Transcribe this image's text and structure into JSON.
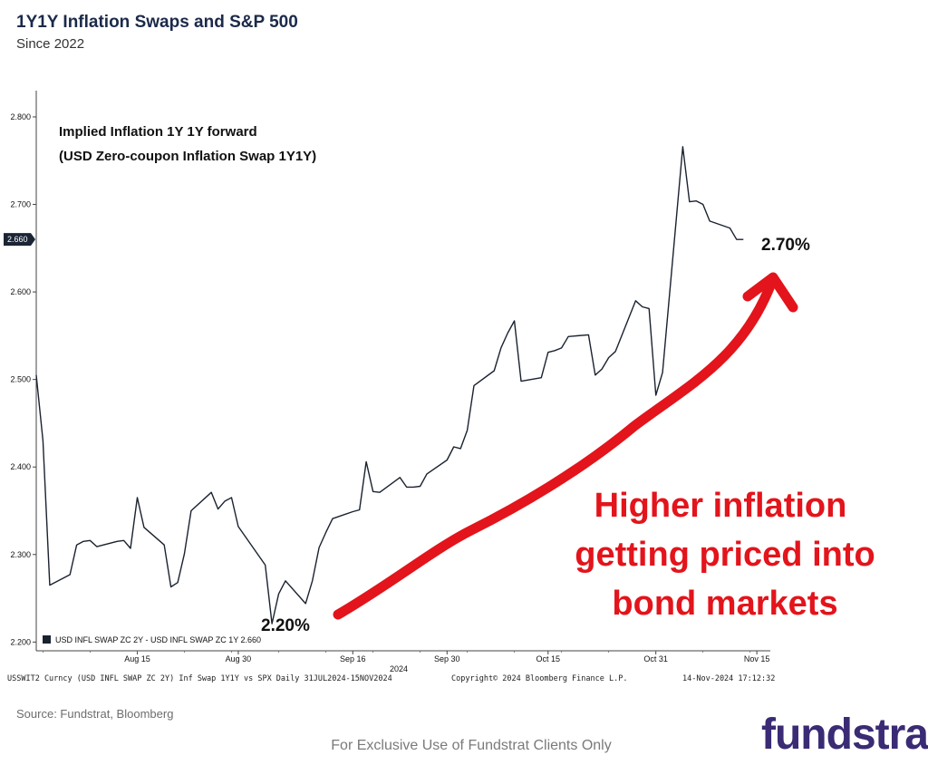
{
  "header": {
    "title": "1Y1Y Inflation Swaps and S&P 500",
    "subtitle": "Since 2022"
  },
  "chart_data": {
    "type": "line",
    "xlabel": "2024",
    "ylabel": "",
    "ylim": [
      2.19,
      2.83
    ],
    "yticks": [
      2.2,
      2.3,
      2.4,
      2.5,
      2.6,
      2.7,
      2.8
    ],
    "ytick_labels": [
      "2.200",
      "2.300",
      "2.400",
      "2.500",
      "2.600",
      "2.700",
      "2.800"
    ],
    "xticks": [
      {
        "label": "Aug 15",
        "date": "2024-08-15"
      },
      {
        "label": "Aug 30",
        "date": "2024-08-30"
      },
      {
        "label": "Sep 16",
        "date": "2024-09-16"
      },
      {
        "label": "Sep 30",
        "date": "2024-09-30"
      },
      {
        "label": "Oct 15",
        "date": "2024-10-15"
      },
      {
        "label": "Oct 31",
        "date": "2024-10-31"
      },
      {
        "label": "Nov 15",
        "date": "2024-11-15"
      }
    ],
    "x_range": [
      "2024-07-31",
      "2024-11-17"
    ],
    "last_value_label": "2.660",
    "legend": "USD INFL SWAP ZC 2Y - USD INFL SWAP ZC 1Y 2.660",
    "legend_position": "bottom-left",
    "grid": false,
    "series": [
      {
        "color": "#1a2230",
        "points": [
          [
            "2024-07-31",
            2.505
          ],
          [
            "2024-08-01",
            2.43
          ],
          [
            "2024-08-02",
            2.265
          ],
          [
            "2024-08-05",
            2.277
          ],
          [
            "2024-08-06",
            2.311
          ],
          [
            "2024-08-07",
            2.315
          ],
          [
            "2024-08-08",
            2.316
          ],
          [
            "2024-08-09",
            2.309
          ],
          [
            "2024-08-12",
            2.315
          ],
          [
            "2024-08-13",
            2.316
          ],
          [
            "2024-08-14",
            2.307
          ],
          [
            "2024-08-15",
            2.365
          ],
          [
            "2024-08-16",
            2.331
          ],
          [
            "2024-08-19",
            2.311
          ],
          [
            "2024-08-20",
            2.263
          ],
          [
            "2024-08-21",
            2.268
          ],
          [
            "2024-08-22",
            2.301
          ],
          [
            "2024-08-23",
            2.35
          ],
          [
            "2024-08-26",
            2.371
          ],
          [
            "2024-08-27",
            2.352
          ],
          [
            "2024-08-28",
            2.361
          ],
          [
            "2024-08-29",
            2.365
          ],
          [
            "2024-08-30",
            2.332
          ],
          [
            "2024-09-03",
            2.288
          ],
          [
            "2024-09-04",
            2.221
          ],
          [
            "2024-09-05",
            2.255
          ],
          [
            "2024-09-06",
            2.27
          ],
          [
            "2024-09-09",
            2.244
          ],
          [
            "2024-09-10",
            2.27
          ],
          [
            "2024-09-11",
            2.308
          ],
          [
            "2024-09-12",
            2.325
          ],
          [
            "2024-09-13",
            2.341
          ],
          [
            "2024-09-16",
            2.349
          ],
          [
            "2024-09-17",
            2.351
          ],
          [
            "2024-09-18",
            2.406
          ],
          [
            "2024-09-19",
            2.372
          ],
          [
            "2024-09-20",
            2.371
          ],
          [
            "2024-09-23",
            2.388
          ],
          [
            "2024-09-24",
            2.377
          ],
          [
            "2024-09-25",
            2.377
          ],
          [
            "2024-09-26",
            2.378
          ],
          [
            "2024-09-27",
            2.392
          ],
          [
            "2024-09-30",
            2.408
          ],
          [
            "2024-10-01",
            2.423
          ],
          [
            "2024-10-02",
            2.421
          ],
          [
            "2024-10-03",
            2.442
          ],
          [
            "2024-10-04",
            2.493
          ],
          [
            "2024-10-07",
            2.51
          ],
          [
            "2024-10-08",
            2.536
          ],
          [
            "2024-10-09",
            2.553
          ],
          [
            "2024-10-10",
            2.567
          ],
          [
            "2024-10-11",
            2.498
          ],
          [
            "2024-10-14",
            2.502
          ],
          [
            "2024-10-15",
            2.531
          ],
          [
            "2024-10-16",
            2.533
          ],
          [
            "2024-10-17",
            2.536
          ],
          [
            "2024-10-18",
            2.549
          ],
          [
            "2024-10-21",
            2.551
          ],
          [
            "2024-10-22",
            2.505
          ],
          [
            "2024-10-23",
            2.512
          ],
          [
            "2024-10-24",
            2.525
          ],
          [
            "2024-10-25",
            2.532
          ],
          [
            "2024-10-28",
            2.59
          ],
          [
            "2024-10-29",
            2.583
          ],
          [
            "2024-10-30",
            2.581
          ],
          [
            "2024-10-31",
            2.482
          ],
          [
            "2024-11-01",
            2.508
          ],
          [
            "2024-11-04",
            2.766
          ],
          [
            "2024-11-05",
            2.703
          ],
          [
            "2024-11-06",
            2.704
          ],
          [
            "2024-11-07",
            2.7
          ],
          [
            "2024-11-08",
            2.681
          ],
          [
            "2024-11-11",
            2.673
          ],
          [
            "2024-11-12",
            2.66
          ],
          [
            "2024-11-13",
            2.66
          ]
        ]
      }
    ],
    "annotations": {
      "series_label_line1": "Implied Inflation 1Y 1Y forward",
      "series_label_line2": "(USD Zero-coupon Inflation Swap 1Y1Y)",
      "low_label": "2.20%",
      "high_label": "2.70%",
      "callout_line1": "Higher inflation",
      "callout_line2": "getting priced into",
      "callout_line3": "bond markets",
      "callout_color": "#e3141b"
    }
  },
  "footer": {
    "ticker_info": "USSWIT2 Curncy (USD INFL SWAP ZC 2Y) Inf Swap 1Y1Y vs SPX  Daily 31JUL2024-15NOV2024",
    "copyright": "Copyright© 2024 Bloomberg Finance L.P.",
    "timestamp": "14-Nov-2024 17:12:32",
    "source": "Source: Fundstrat, Bloomberg",
    "exclusive": "For Exclusive Use of Fundstrat Clients Only",
    "logo": "fundstra"
  }
}
